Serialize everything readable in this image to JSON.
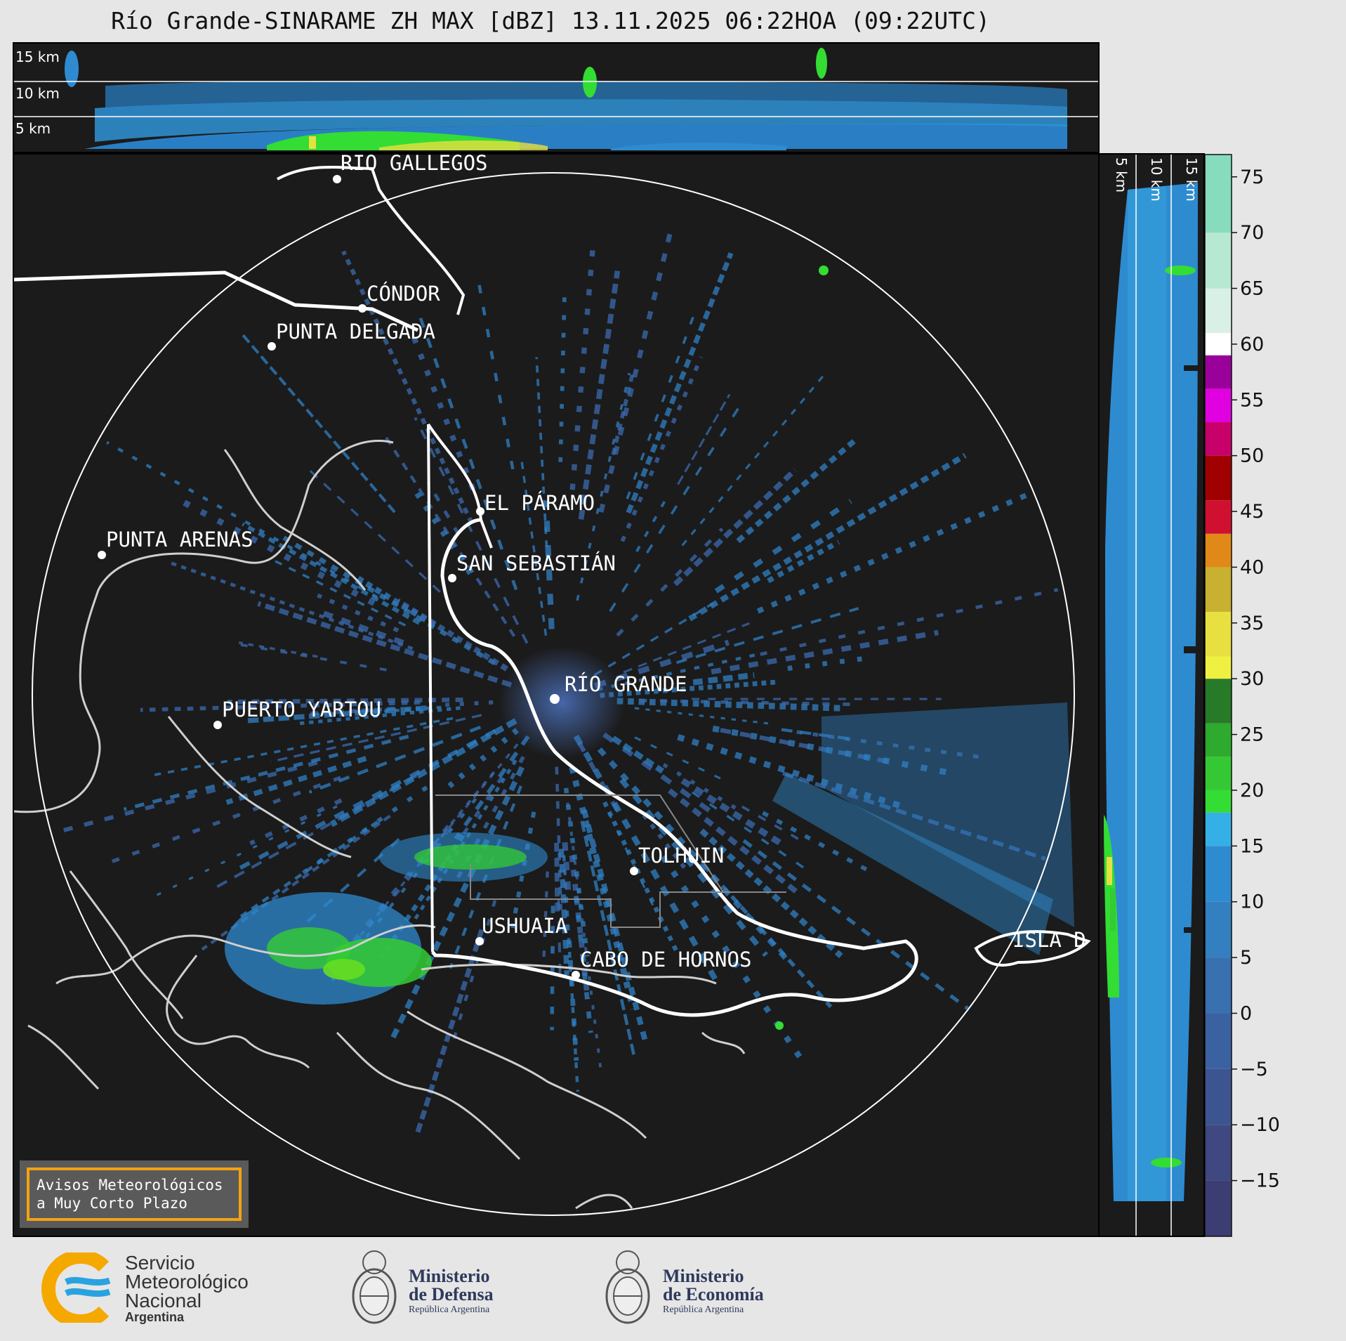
{
  "title": "Río Grande-SINARAME ZH MAX [dBZ] 13.11.2025 06:22HOA (09:22UTC)",
  "top_panel": {
    "height_labels": [
      "15 km",
      "10 km",
      "5 km"
    ]
  },
  "side_panel": {
    "height_labels": [
      "5 km",
      "10 km",
      "15 km"
    ]
  },
  "map_labels": {
    "rio_gallegos": "RÍO GALLEGOS",
    "condor": "CÓNDOR",
    "punta_delgada": "PUNTA DELGADA",
    "el_paramo": "EL PÁRAMO",
    "san_sebastian": "SAN SEBASTIÁN",
    "punta_arenas": "PUNTA ARENAS",
    "rio_grande": "RÍO GRANDE",
    "puerto_yartou": "PUERTO YARTOU",
    "tolhuin": "TOLHUIN",
    "ushuaia": "USHUAIA",
    "cabo_de_hornos": "CABO DE HORNOS",
    "isla_de_los_estados": "ISLA D"
  },
  "colorbar": {
    "unit": "dBZ",
    "ticks": [
      "75",
      "70",
      "65",
      "60",
      "55",
      "50",
      "45",
      "40",
      "35",
      "30",
      "25",
      "20",
      "15",
      "10",
      "5",
      "0",
      "−5",
      "−10",
      "−15"
    ],
    "colors": {
      "low": "#3b3f78",
      "mid_blue": "#2f8bd0",
      "light_blue": "#35b0e6",
      "green": "#33dd33",
      "yellow": "#e8e040",
      "orange": "#e08818",
      "red": "#d01030",
      "magenta": "#e000e0",
      "white": "#ffffff",
      "mint": "#86dcbc"
    }
  },
  "notice": {
    "line1": "Avisos Meteorológicos",
    "line2": "a Muy Corto Plazo"
  },
  "footer": {
    "smn": {
      "line1": "Servicio",
      "line2": "Meteorológico",
      "line3": "Nacional",
      "line4": "Argentina"
    },
    "defensa": {
      "line1": "Ministerio",
      "line2": "de Defensa",
      "line3": "República Argentina"
    },
    "economia": {
      "line1": "Ministerio",
      "line2": "de Economía",
      "line3": "República Argentina"
    }
  }
}
